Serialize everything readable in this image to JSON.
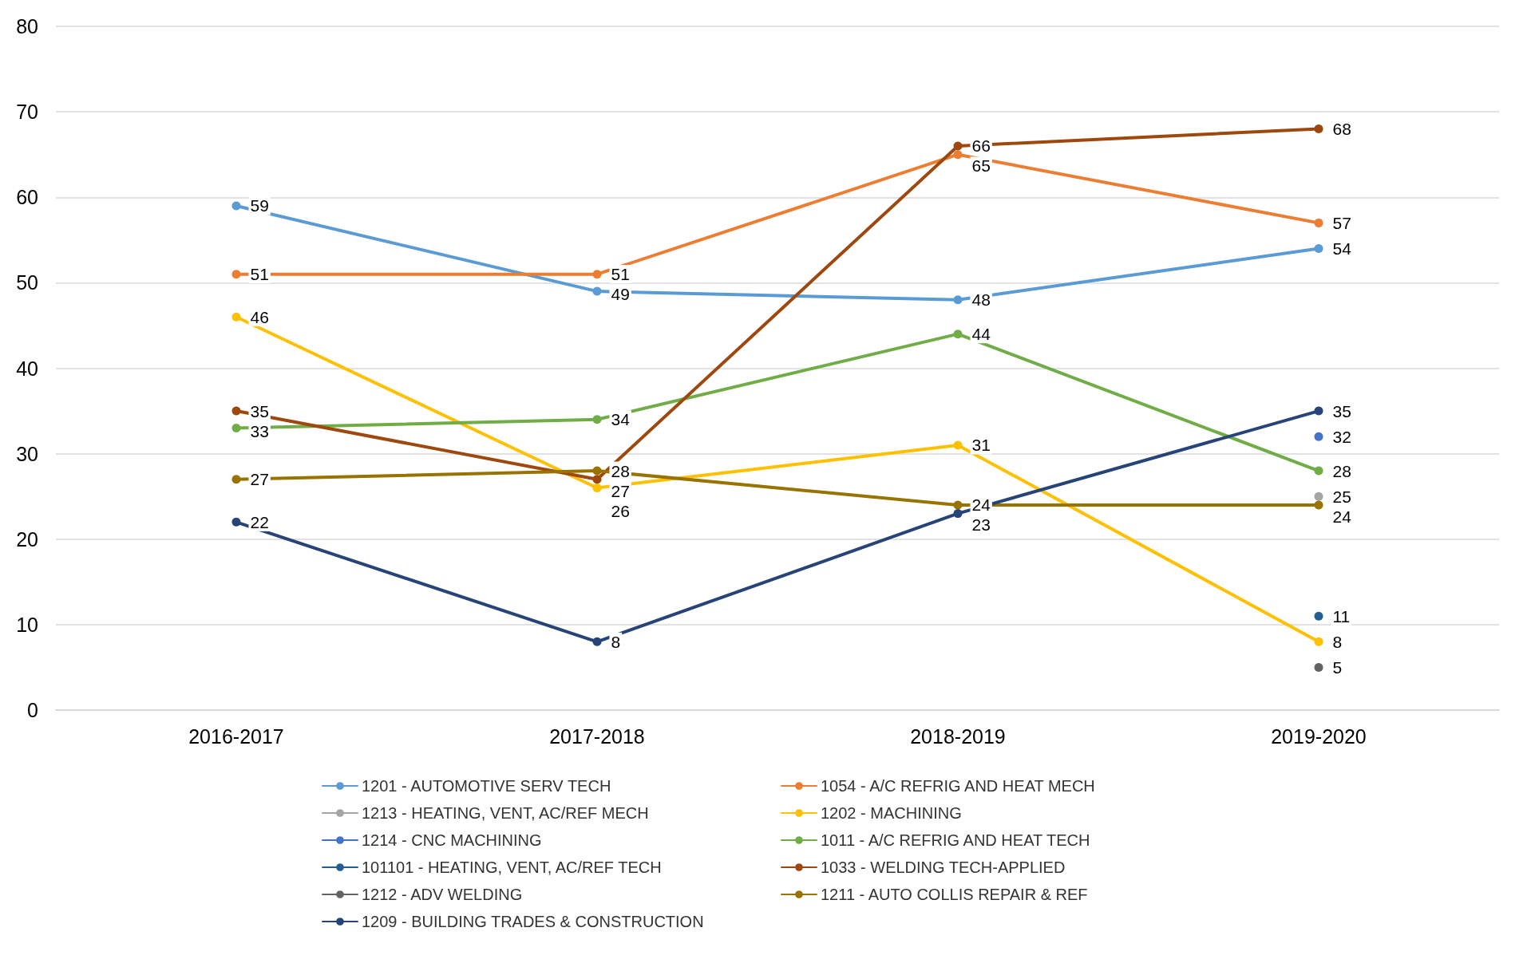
{
  "chart_data": {
    "type": "line",
    "categories": [
      "2016-2017",
      "2017-2018",
      "2018-2019",
      "2019-2020"
    ],
    "ylim": [
      0,
      80
    ],
    "yticks": [
      0,
      10,
      20,
      30,
      40,
      50,
      60,
      70,
      80
    ],
    "grid": "y",
    "legend": "bottom",
    "marker": "circle",
    "data_labels": true,
    "series": [
      {
        "name": "1201 - AUTOMOTIVE SERV TECH",
        "color": "#5b9bd5",
        "values": [
          59,
          49,
          48,
          54
        ]
      },
      {
        "name": "1054 - A/C REFRIG AND HEAT MECH",
        "color": "#ed7d31",
        "values": [
          51,
          51,
          65,
          57
        ]
      },
      {
        "name": "1213 - HEATING, VENT, AC/REF MECH",
        "color": "#a5a5a5",
        "values": [
          null,
          null,
          null,
          25
        ]
      },
      {
        "name": "1202 - MACHINING",
        "color": "#ffc000",
        "values": [
          46,
          26,
          31,
          8
        ]
      },
      {
        "name": "1214 - CNC MACHINING",
        "color": "#4472c4",
        "values": [
          null,
          null,
          null,
          32
        ]
      },
      {
        "name": "1011 - A/C REFRIG AND HEAT TECH",
        "color": "#70ad47",
        "values": [
          33,
          34,
          44,
          28
        ]
      },
      {
        "name": "101101 - HEATING, VENT, AC/REF TECH",
        "color": "#255e91",
        "values": [
          null,
          null,
          null,
          11
        ]
      },
      {
        "name": "1033 - WELDING TECH-APPLIED",
        "color": "#9e480e",
        "values": [
          35,
          27,
          66,
          68
        ]
      },
      {
        "name": "1212 - ADV WELDING",
        "color": "#636363",
        "values": [
          null,
          null,
          null,
          5
        ]
      },
      {
        "name": "1211 - AUTO COLLIS REPAIR & REF",
        "color": "#997300",
        "values": [
          27,
          28,
          24,
          24
        ]
      },
      {
        "name": "1209 - BUILDING TRADES & CONSTRUCTION",
        "color": "#264478",
        "values": [
          22,
          8,
          23,
          35
        ]
      }
    ]
  }
}
